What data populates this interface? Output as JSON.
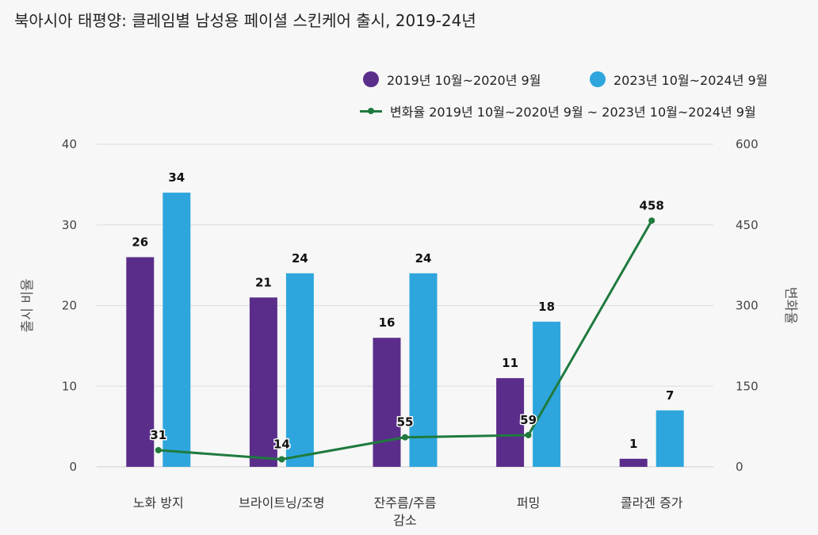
{
  "title": "북아시아 태평양: 클레임별 남성용 페이셜 스킨케어 출시, 2019-24년",
  "legend": {
    "series1": "2019년 10월~2020년 9월",
    "series2": "2023년 10월~2024년 9월",
    "line": "변화율 2019년 10월~2020년 9월 ~ 2023년 10월~2024년 9월"
  },
  "colors": {
    "series1": "#5b2d8b",
    "series2": "#2ea6dd",
    "line": "#1f7a3e",
    "grid": "#dddddd"
  },
  "chart_data": {
    "type": "bar",
    "categories": [
      "노화 방지",
      "브라이트닝/조명",
      "잔주름/주름 감소",
      "퍼밍",
      "콜라겐 증가"
    ],
    "category_lines": [
      [
        "노화 방지"
      ],
      [
        "브라이트닝/조명"
      ],
      [
        "잔주름/주름",
        "감소"
      ],
      [
        "퍼밍"
      ],
      [
        "콜라겐 증가"
      ]
    ],
    "series": [
      {
        "name": "2019년 10월~2020년 9월",
        "values": [
          26,
          21,
          16,
          11,
          1
        ],
        "axis": "left"
      },
      {
        "name": "2023년 10월~2024년 9월",
        "values": [
          34,
          24,
          24,
          18,
          7
        ],
        "axis": "left"
      },
      {
        "name": "변화율 2019년 10월~2020년 9월 ~ 2023년 10월~2024년 9월",
        "type": "line",
        "values": [
          31,
          14,
          55,
          59,
          458
        ],
        "axis": "right"
      }
    ],
    "ylabel": "출시 비율",
    "y2label": "변화율",
    "ylim": [
      0,
      40
    ],
    "y2lim": [
      0,
      600
    ],
    "yticks": [
      0,
      10,
      20,
      30,
      40
    ],
    "y2ticks": [
      0,
      150,
      300,
      450,
      600
    ],
    "grid": true,
    "legend_position": "top-right"
  }
}
